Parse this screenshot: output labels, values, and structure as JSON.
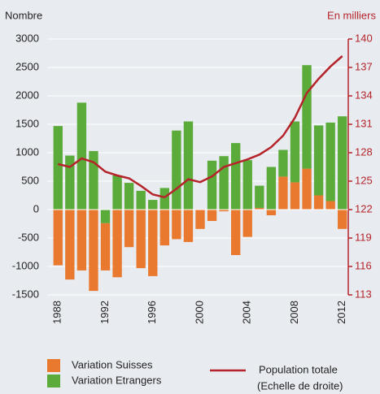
{
  "chart_data": {
    "type": "bar",
    "y_label": "Nombre",
    "y2_label": "En milliers",
    "categories": [
      "1988",
      null,
      null,
      null,
      "1992",
      null,
      null,
      null,
      "1996",
      null,
      null,
      null,
      "2000",
      null,
      null,
      null,
      "2004",
      null,
      null,
      null,
      "2008",
      null,
      null,
      null,
      "2012"
    ],
    "series": [
      {
        "name": "Variation Suisses",
        "color": "#e8792f",
        "values": [
          -980,
          -1230,
          -1070,
          -1430,
          -830,
          -1190,
          -660,
          -1030,
          -1170,
          -630,
          -520,
          -570,
          -340,
          -200,
          -30,
          -800,
          -480,
          30,
          -100,
          580,
          480,
          720,
          250,
          150,
          -340
        ]
      },
      {
        "name": "Variation Etrangers",
        "color": "#5aab3a",
        "values": [
          1470,
          950,
          1880,
          1030,
          -240,
          600,
          470,
          330,
          170,
          380,
          1390,
          1550,
          0,
          860,
          940,
          1170,
          870,
          390,
          750,
          470,
          1070,
          1820,
          1230,
          1380,
          1640
        ]
      },
      {
        "name": "Population totale",
        "type": "line",
        "axis": "y2",
        "color": "#b5242a",
        "values": [
          126.8,
          126.5,
          127.4,
          127.0,
          126.0,
          125.6,
          125.3,
          124.5,
          123.6,
          123.3,
          124.2,
          125.2,
          124.9,
          125.5,
          126.5,
          126.9,
          127.3,
          127.8,
          128.6,
          129.8,
          131.7,
          134.3,
          135.8,
          137.1,
          138.2
        ]
      }
    ],
    "legend_note": "(Echelle de droite)",
    "ylim": [
      -1500,
      3000
    ],
    "yticks": [
      -1500,
      -1000,
      -500,
      0,
      500,
      1000,
      1500,
      2000,
      2500,
      3000
    ],
    "y2lim": [
      113,
      140
    ],
    "y2ticks": [
      113,
      116,
      119,
      122,
      125,
      128,
      131,
      134,
      137,
      140
    ],
    "grid": true
  }
}
